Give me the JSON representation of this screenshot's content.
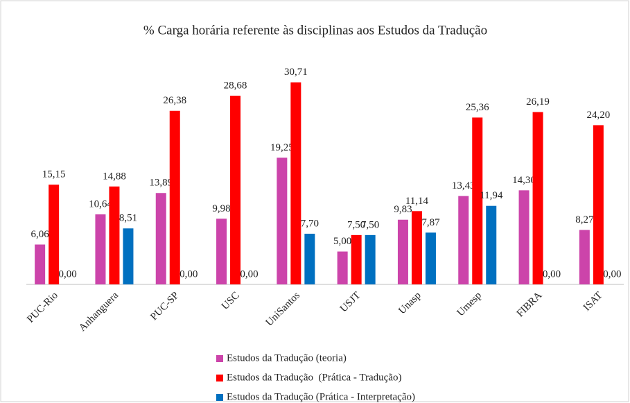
{
  "chart_data": {
    "type": "bar",
    "title": "% Carga horária referente às disciplinas aos Estudos da Tradução",
    "categories": [
      "PUC-Rio",
      "Anhanguera",
      "PUC-SP",
      "USC",
      "UniSantos",
      "USJT",
      "Unasp",
      "Umesp",
      "FIBRA",
      "ISAT"
    ],
    "series": [
      {
        "name": "Estudos da Tradução (teoria)",
        "color": "#cc44aa",
        "values": [
          6.06,
          10.64,
          13.89,
          9.98,
          19.25,
          5.0,
          9.83,
          13.43,
          14.3,
          8.27
        ],
        "value_labels": [
          "6,06",
          "10,64",
          "13,89",
          "9,98",
          "19,25",
          "5,00",
          "9,83",
          "13,43",
          "14,30",
          "8,27"
        ]
      },
      {
        "name": "Estudos da Tradução  (Prática - Tradução)",
        "color": "#ff0000",
        "values": [
          15.15,
          14.88,
          26.38,
          28.68,
          30.71,
          7.5,
          11.14,
          25.36,
          26.19,
          24.2
        ],
        "value_labels": [
          "15,15",
          "14,88",
          "26,38",
          "28,68",
          "30,71",
          "7,50",
          "11,14",
          "25,36",
          "26,19",
          "24,20"
        ]
      },
      {
        "name": "Estudos da Tradução (Prática - Interpretação)",
        "color": "#0070c0",
        "values": [
          0,
          8.51,
          0,
          0,
          7.7,
          7.5,
          7.87,
          11.94,
          0,
          0
        ],
        "value_labels": [
          "0,00",
          "8,51",
          "0,00",
          "0,00",
          "7,70",
          "7,50",
          "7,87",
          "11,94",
          "0,00",
          "0,00"
        ]
      }
    ],
    "ylim": [
      0,
      35
    ]
  }
}
